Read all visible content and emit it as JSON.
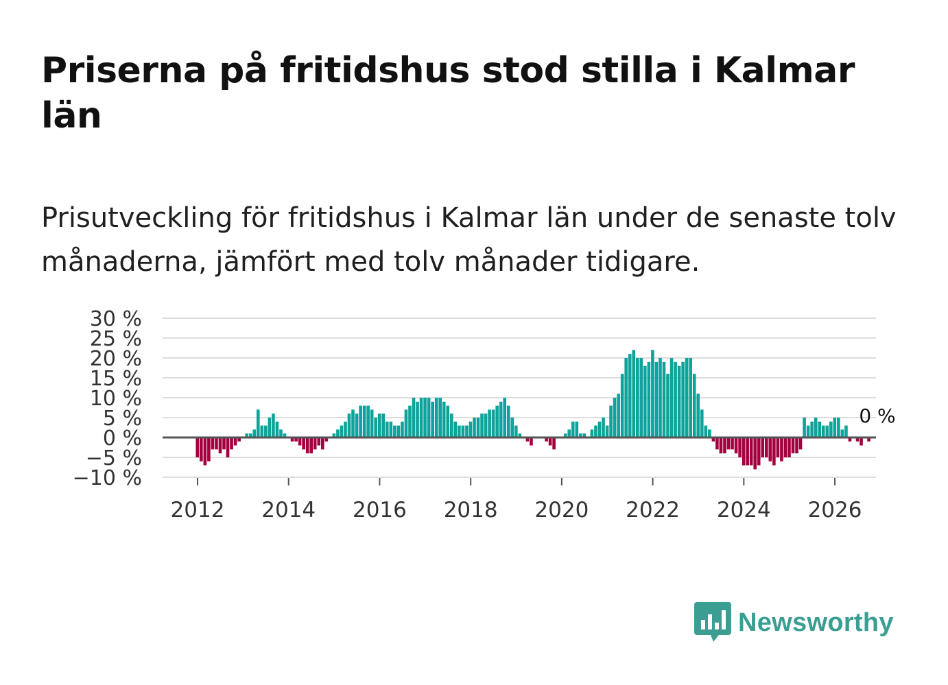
{
  "title": "Priserna på fritidshus stod stilla i Kalmar län",
  "subtitle": "Prisutveckling för fritidshus i Kalmar län under de senaste tolv månaderna, jämfört med tolv månader tidigare.",
  "brand": {
    "name": "Newsworthy",
    "color": "#3a9e93"
  },
  "colors": {
    "positive": "#0ea39a",
    "negative": "#a3003f",
    "grid": "#dddddd",
    "zero_line": "#555555",
    "axis_text": "#333333"
  },
  "chart_data": {
    "type": "bar",
    "x_start": "2012-01",
    "x_ticks": [
      2012,
      2014,
      2016,
      2018,
      2020,
      2022,
      2024,
      2026
    ],
    "ylim": [
      -10,
      30
    ],
    "y_ticks": [
      "30 %",
      "25 %",
      "20 %",
      "15 %",
      "10 %",
      "5 %",
      "0 %",
      "−5 %",
      "−10 %"
    ],
    "y_tick_values": [
      30,
      25,
      20,
      15,
      10,
      5,
      0,
      -5,
      -10
    ],
    "end_label": "0 %",
    "values": [
      -5,
      -6,
      -7,
      -6,
      -3,
      -3,
      -4,
      -3,
      -5,
      -3,
      -2,
      -1,
      0,
      1,
      1,
      2,
      7,
      3,
      3,
      5,
      6,
      4,
      2,
      1,
      0,
      -1,
      -1,
      -2,
      -3,
      -4,
      -4,
      -3,
      -2,
      -3,
      -1,
      0,
      1,
      2,
      3,
      4,
      6,
      7,
      6,
      8,
      8,
      8,
      7,
      5,
      6,
      6,
      4,
      4,
      3,
      3,
      4,
      7,
      8,
      10,
      9,
      10,
      10,
      10,
      9,
      10,
      10,
      9,
      8,
      6,
      4,
      3,
      3,
      3,
      4,
      5,
      5,
      6,
      6,
      7,
      7,
      8,
      9,
      10,
      8,
      5,
      3,
      1,
      0,
      -1,
      -2,
      0,
      0,
      0,
      -1,
      -2,
      -3,
      0,
      0,
      1,
      2,
      4,
      4,
      1,
      1,
      0,
      2,
      3,
      4,
      5,
      3,
      8,
      10,
      11,
      16,
      20,
      21,
      22,
      20,
      20,
      18,
      19,
      22,
      19,
      20,
      19,
      16,
      20,
      19,
      18,
      19,
      20,
      20,
      16,
      11,
      7,
      3,
      2,
      -1,
      -3,
      -4,
      -4,
      -3,
      -3,
      -4,
      -5,
      -7,
      -7,
      -7,
      -8,
      -7,
      -5,
      -5,
      -6,
      -7,
      -5,
      -6,
      -5,
      -5,
      -4,
      -4,
      -3,
      5,
      3,
      4,
      5,
      4,
      3,
      3,
      4,
      5,
      5,
      2,
      3,
      -1,
      0,
      -1,
      -2,
      0,
      -1,
      0
    ]
  }
}
